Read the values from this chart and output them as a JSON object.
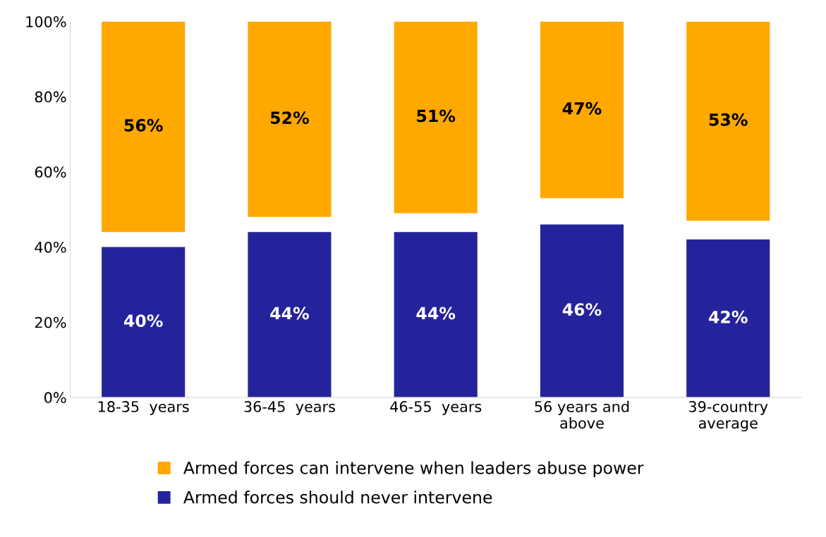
{
  "chart_data": {
    "type": "bar",
    "categories": [
      "18-35  years",
      "36-45  years",
      "46-55  years",
      "56 years and\nabove",
      "39-country\naverage"
    ],
    "series": [
      {
        "name": "Armed forces can intervene when leaders abuse power",
        "color": "#ffa800",
        "values": [
          56,
          52,
          51,
          47,
          53
        ],
        "base": [
          44,
          48,
          49,
          53,
          47
        ],
        "value_labels": [
          "56%",
          "52%",
          "51%",
          "47%",
          "53%"
        ]
      },
      {
        "name": "Armed forces should never intervene",
        "color": "#25239b",
        "values": [
          40,
          44,
          44,
          46,
          42
        ],
        "value_labels": [
          "40%",
          "44%",
          "44%",
          "46%",
          "42%"
        ]
      }
    ],
    "ylim": [
      0,
      100
    ],
    "yticks": [
      {
        "value": 0,
        "label": "0%"
      },
      {
        "value": 20,
        "label": "20%"
      },
      {
        "value": 40,
        "label": "40%"
      },
      {
        "value": 60,
        "label": "60%"
      },
      {
        "value": 80,
        "label": "80%"
      },
      {
        "value": 100,
        "label": "100%"
      }
    ],
    "grid": false,
    "legend": "bottom"
  }
}
